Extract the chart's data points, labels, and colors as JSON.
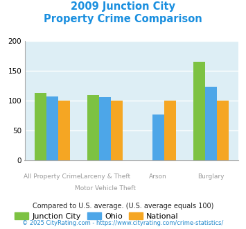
{
  "title_line1": "2009 Junction City",
  "title_line2": "Property Crime Comparison",
  "title_color": "#1a8fdf",
  "junction_city": [
    113,
    110,
    0,
    165
  ],
  "ohio": [
    107,
    106,
    77,
    124
  ],
  "national": [
    100,
    100,
    100,
    100
  ],
  "jc_color": "#7dc242",
  "ohio_color": "#4da6e8",
  "national_color": "#f5a623",
  "bg_color": "#ddeef5",
  "ylim": [
    0,
    200
  ],
  "yticks": [
    0,
    50,
    100,
    150,
    200
  ],
  "top_labels": [
    "",
    "Larceny & Theft",
    "Arson",
    ""
  ],
  "bot_labels": [
    "All Property Crime",
    "Motor Vehicle Theft",
    "",
    "Burglary"
  ],
  "footnote1": "Compared to U.S. average. (U.S. average equals 100)",
  "footnote2": "© 2025 CityRating.com - https://www.cityrating.com/crime-statistics/",
  "footnote1_color": "#222222",
  "footnote2_color": "#2288cc",
  "legend_labels": [
    "Junction City",
    "Ohio",
    "National"
  ]
}
